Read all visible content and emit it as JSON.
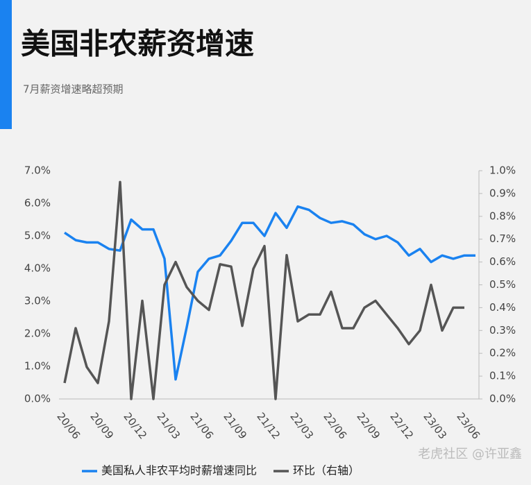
{
  "chart_data": {
    "type": "line",
    "title": "美国非农薪资增速",
    "subtitle": "7月薪资增速略超预期",
    "watermark": "老虎社区 @许亚鑫",
    "categories": [
      "20/06",
      null,
      null,
      "20/09",
      null,
      null,
      "20/12",
      null,
      null,
      "21/03",
      null,
      null,
      "21/06",
      null,
      null,
      "21/09",
      null,
      null,
      "21/12",
      null,
      null,
      "22/03",
      null,
      null,
      "22/06",
      null,
      null,
      "22/09",
      null,
      null,
      "22/12",
      null,
      null,
      "23/03",
      null,
      null,
      "23/06",
      null
    ],
    "series": [
      {
        "name": "美国私人非农平均时薪增速同比",
        "color": "#1a82f0",
        "axis": "y",
        "values": [
          5.1,
          4.87,
          4.8,
          4.8,
          4.6,
          4.55,
          5.5,
          5.2,
          5.2,
          4.3,
          0.6,
          2.2,
          3.9,
          4.3,
          4.4,
          4.85,
          5.4,
          5.4,
          5.0,
          5.7,
          5.25,
          5.9,
          5.8,
          5.55,
          5.4,
          5.45,
          5.35,
          5.05,
          4.9,
          5.0,
          4.8,
          4.4,
          4.6,
          4.2,
          4.4,
          4.3,
          4.4,
          4.4
        ]
      },
      {
        "name": "环比（右轴）",
        "color": "#555555",
        "axis": "y2",
        "values": [
          0.07,
          0.31,
          0.14,
          0.07,
          0.34,
          0.95,
          0.0,
          0.43,
          0.0,
          0.5,
          0.6,
          0.49,
          0.43,
          0.39,
          0.59,
          0.58,
          0.32,
          0.57,
          0.67,
          0.0,
          0.63,
          0.34,
          0.37,
          0.37,
          0.47,
          0.31,
          0.31,
          0.4,
          0.43,
          0.37,
          0.31,
          0.24,
          0.3,
          0.5,
          0.3,
          0.4,
          0.4,
          null
        ]
      }
    ],
    "ylim": [
      0,
      7
    ],
    "yticks": [
      {
        "value": 0,
        "label": "0.0%"
      },
      {
        "value": 1,
        "label": "1.0%"
      },
      {
        "value": 2,
        "label": "2.0%"
      },
      {
        "value": 3,
        "label": "3.0%"
      },
      {
        "value": 4,
        "label": "4.0%"
      },
      {
        "value": 5,
        "label": "5.0%"
      },
      {
        "value": 6,
        "label": "6.0%"
      },
      {
        "value": 7,
        "label": "7.0%"
      }
    ],
    "y2lim": [
      0,
      1
    ],
    "y2ticks": [
      {
        "value": 0,
        "label": "0.0%"
      },
      {
        "value": 0.1,
        "label": "0.1%"
      },
      {
        "value": 0.2,
        "label": "0.2%"
      },
      {
        "value": 0.3,
        "label": "0.3%"
      },
      {
        "value": 0.4,
        "label": "0.4%"
      },
      {
        "value": 0.5,
        "label": "0.5%"
      },
      {
        "value": 0.6,
        "label": "0.6%"
      },
      {
        "value": 0.7,
        "label": "0.7%"
      },
      {
        "value": 0.8,
        "label": "0.8%"
      },
      {
        "value": 0.9,
        "label": "0.9%"
      },
      {
        "value": 1,
        "label": "1.0%"
      }
    ],
    "legend": "bottom"
  }
}
